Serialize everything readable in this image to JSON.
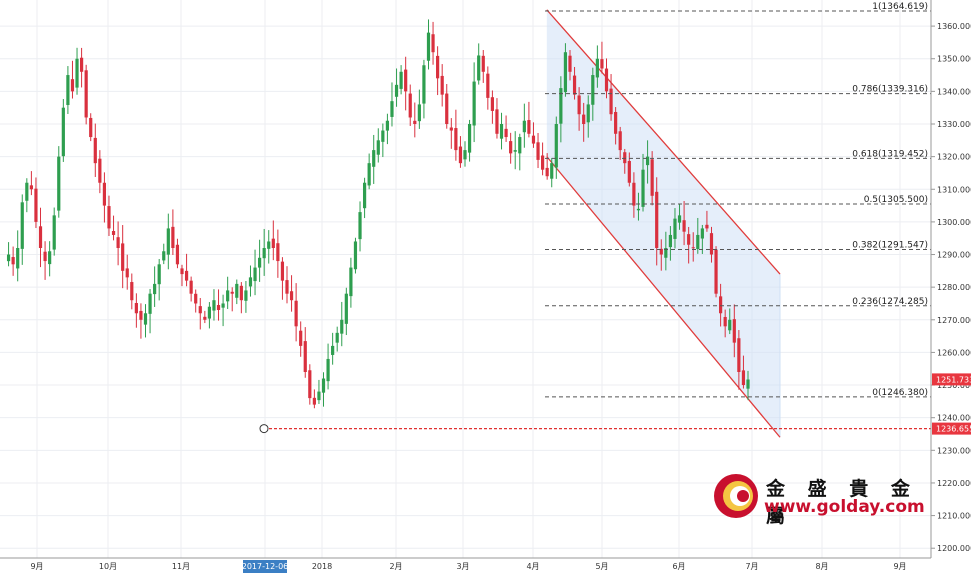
{
  "chart_data": {
    "type": "candlestick",
    "instrument_note": "",
    "x_tick_labels": [
      "9月",
      "10月",
      "11月",
      "2017-12-06",
      "2018",
      "2月",
      "3月",
      "4月",
      "5月",
      "6月",
      "7月",
      "8月",
      "9月"
    ],
    "highlighted_x_label": "2017-12-06",
    "y_ticks": [
      "1200.000",
      "1210.000",
      "1220.000",
      "1230.000",
      "1240.000",
      "1250.000",
      "1260.000",
      "1270.000",
      "1280.000",
      "1290.000",
      "1300.000",
      "1310.000",
      "1320.000",
      "1330.000",
      "1340.000",
      "1350.000",
      "1360.000"
    ],
    "ylim": [
      1197,
      1368
    ],
    "fibonacci_levels": [
      {
        "ratio": 1,
        "price": 1364.619,
        "label": "1(1364.619)"
      },
      {
        "ratio": 0.786,
        "price": 1339.316,
        "label": "0.786(1339.316)"
      },
      {
        "ratio": 0.618,
        "price": 1319.452,
        "label": "0.618(1319.452)"
      },
      {
        "ratio": 0.5,
        "price": 1305.5,
        "label": "0.5(1305.500)"
      },
      {
        "ratio": 0.382,
        "price": 1291.547,
        "label": "0.382(1291.547)"
      },
      {
        "ratio": 0.236,
        "price": 1274.285,
        "label": "0.236(1274.285)"
      },
      {
        "ratio": 0,
        "price": 1246.38,
        "label": "0(1246.380)"
      }
    ],
    "current_price": "1251.733",
    "support_line": {
      "price": 1236.655,
      "label": "1236.655"
    },
    "channel": {
      "upper": [
        [
          4.2,
          1365
        ],
        [
          7.4,
          1284
        ]
      ],
      "lower": [
        [
          4.2,
          1320
        ],
        [
          7.4,
          1234
        ]
      ]
    },
    "closes": [
      1288,
      1290,
      1287,
      1292,
      1306,
      1312,
      1310,
      1300,
      1292,
      1288,
      1291,
      1302,
      1320,
      1335,
      1345,
      1340,
      1350,
      1346,
      1332,
      1326,
      1318,
      1312,
      1305,
      1298,
      1296,
      1292,
      1285,
      1283,
      1276,
      1272,
      1270,
      1272,
      1278,
      1281,
      1287,
      1291,
      1298,
      1292,
      1287,
      1284,
      1282,
      1278,
      1275,
      1272,
      1270,
      1274,
      1276,
      1273,
      1275,
      1279,
      1278,
      1281,
      1276,
      1279,
      1283,
      1286,
      1289,
      1292,
      1294,
      1292,
      1288,
      1282,
      1278,
      1276,
      1268,
      1262,
      1254,
      1246,
      1244,
      1248,
      1252,
      1258,
      1262,
      1266,
      1270,
      1278,
      1286,
      1294,
      1303,
      1312,
      1318,
      1322,
      1325,
      1328,
      1331,
      1337,
      1342,
      1346,
      1340,
      1332,
      1330,
      1336,
      1348,
      1358,
      1352,
      1344,
      1339,
      1330,
      1328,
      1322,
      1318,
      1322,
      1330,
      1343,
      1351,
      1346,
      1338,
      1334,
      1327,
      1330,
      1326,
      1321,
      1322,
      1326,
      1331,
      1327,
      1324,
      1319,
      1316,
      1314,
      1318,
      1330,
      1341,
      1352,
      1346,
      1339,
      1333,
      1330,
      1336,
      1345,
      1350,
      1347,
      1340,
      1333,
      1327,
      1322,
      1318,
      1312,
      1305,
      1304,
      1316,
      1320,
      1308,
      1292,
      1290,
      1292,
      1296,
      1301,
      1302,
      1297,
      1293,
      1292,
      1296,
      1298,
      1298,
      1290,
      1278,
      1272,
      1268,
      1270,
      1263,
      1254,
      1250,
      1251.7
    ]
  },
  "watermark": {
    "cn": "金 盛 貴 金 屬",
    "url": "www.golday.com"
  },
  "colors": {
    "up": "#2e9e4f",
    "down": "#d9303e",
    "fib": "#555555",
    "channel": "#e03c3c",
    "channel_fill": "#cfe0f5",
    "support": "#e03030",
    "tag": "#e8363f",
    "highlight": "#3b7fc4"
  }
}
